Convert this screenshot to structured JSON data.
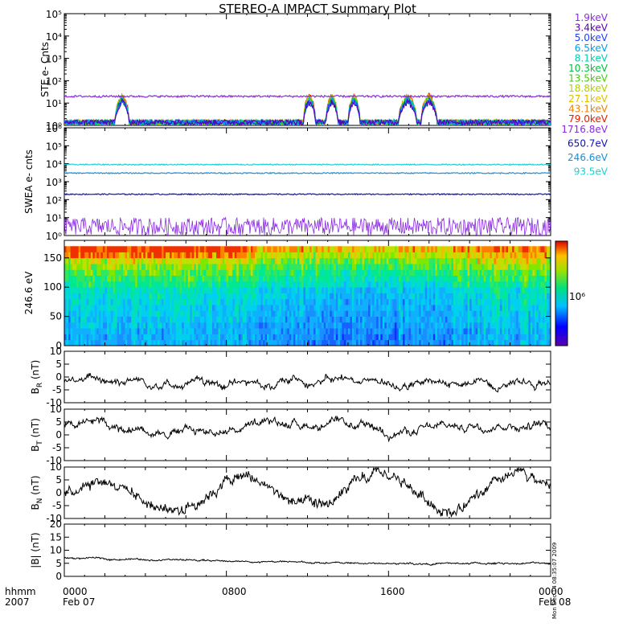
{
  "title": "STEREO-A IMPACT Summary Plot",
  "footer": {
    "time_label": "hhmm",
    "year_label": "2007",
    "start_date": "Feb 07",
    "end_date": "Feb 08",
    "time_ticks": [
      "0000",
      "0800",
      "1600",
      "0000"
    ],
    "timestamp": "Mon Dec 14 08:35:07 2009"
  },
  "colorbar_label": "10⁶",
  "chart_data": [
    {
      "type": "line",
      "panel": "ste",
      "ylabel": "STE e- Cnts",
      "ylog": true,
      "ylim": [
        1,
        100000
      ],
      "yticks": [
        "10⁰",
        "10¹",
        "10²",
        "10³",
        "10⁴",
        "10⁵"
      ],
      "x_hours": [
        0,
        24
      ],
      "series": [
        {
          "name": "1.9keV",
          "color": "#8a2be2",
          "level": 20
        },
        {
          "name": "3.4keV",
          "color": "#5a00b0"
        },
        {
          "name": "5.0keV",
          "color": "#2040ff"
        },
        {
          "name": "6.5keV",
          "color": "#00a0e0"
        },
        {
          "name": "8.1keV",
          "color": "#00d0b0"
        },
        {
          "name": "10.3keV",
          "color": "#00c040"
        },
        {
          "name": "13.5keV",
          "color": "#40d000"
        },
        {
          "name": "18.8keV",
          "color": "#b0d000"
        },
        {
          "name": "27.1keV",
          "color": "#e0c000"
        },
        {
          "name": "43.1keV",
          "color": "#f08000"
        },
        {
          "name": "79.0keV",
          "color": "#e02000"
        }
      ],
      "events_hours": [
        [
          2.5,
          3.2
        ],
        [
          11.8,
          12.4
        ],
        [
          12.9,
          13.5
        ],
        [
          14.0,
          14.6
        ],
        [
          16.5,
          17.4
        ],
        [
          17.6,
          18.4
        ]
      ]
    },
    {
      "type": "line",
      "panel": "swea",
      "ylabel": "SWEA e- cnts",
      "ylog": true,
      "ylim": [
        1,
        1000000
      ],
      "yticks": [
        "10⁰",
        "10¹",
        "10²",
        "10³",
        "10⁴",
        "10⁵",
        "10⁶"
      ],
      "series": [
        {
          "name": "1716.8eV",
          "color": "#8a2be2",
          "level": 4
        },
        {
          "name": "650.7eV",
          "color": "#1010c0",
          "level": 200
        },
        {
          "name": "246.6eV",
          "color": "#1890e0",
          "level": 3000
        },
        {
          "name": "93.5eV",
          "color": "#20d0d0",
          "level": 9000
        }
      ]
    },
    {
      "type": "heatmap",
      "panel": "pad",
      "ylabel": "246.6 eV",
      "ylim": [
        0,
        180
      ],
      "yticks": [
        "0",
        "50",
        "100",
        "150"
      ]
    },
    {
      "type": "line",
      "panel": "br",
      "ylabel_main": "B",
      "ylabel_sub": "R",
      "ylabel_unit": "(nT)",
      "ylim": [
        -10,
        10
      ],
      "yticks": [
        "-10",
        "-5",
        "0",
        "5",
        "10"
      ],
      "mean": -2,
      "amp": 2.5,
      "series": [
        {
          "color": "#000000"
        }
      ]
    },
    {
      "type": "line",
      "panel": "bt",
      "ylabel_main": "B",
      "ylabel_sub": "T",
      "ylabel_unit": "(nT)",
      "ylim": [
        -10,
        10
      ],
      "yticks": [
        "-10",
        "-5",
        "0",
        "5",
        "10"
      ],
      "mean": 3,
      "amp": 3,
      "series": [
        {
          "color": "#000000"
        }
      ]
    },
    {
      "type": "line",
      "panel": "bn",
      "ylabel_main": "B",
      "ylabel_sub": "N",
      "ylabel_unit": "(nT)",
      "ylim": [
        -10,
        10
      ],
      "yticks": [
        "-10",
        "-5",
        "0",
        "5",
        "10"
      ],
      "mean": 0,
      "amp": 6,
      "series": [
        {
          "color": "#000000"
        }
      ]
    },
    {
      "type": "line",
      "panel": "bmag",
      "ylabel_main": "|B| (nT)",
      "ylim": [
        0,
        20
      ],
      "yticks": [
        "0",
        "5",
        "10",
        "15",
        "20"
      ],
      "mean": 6.3,
      "amp": 0.6,
      "series": [
        {
          "color": "#000000"
        }
      ]
    }
  ]
}
